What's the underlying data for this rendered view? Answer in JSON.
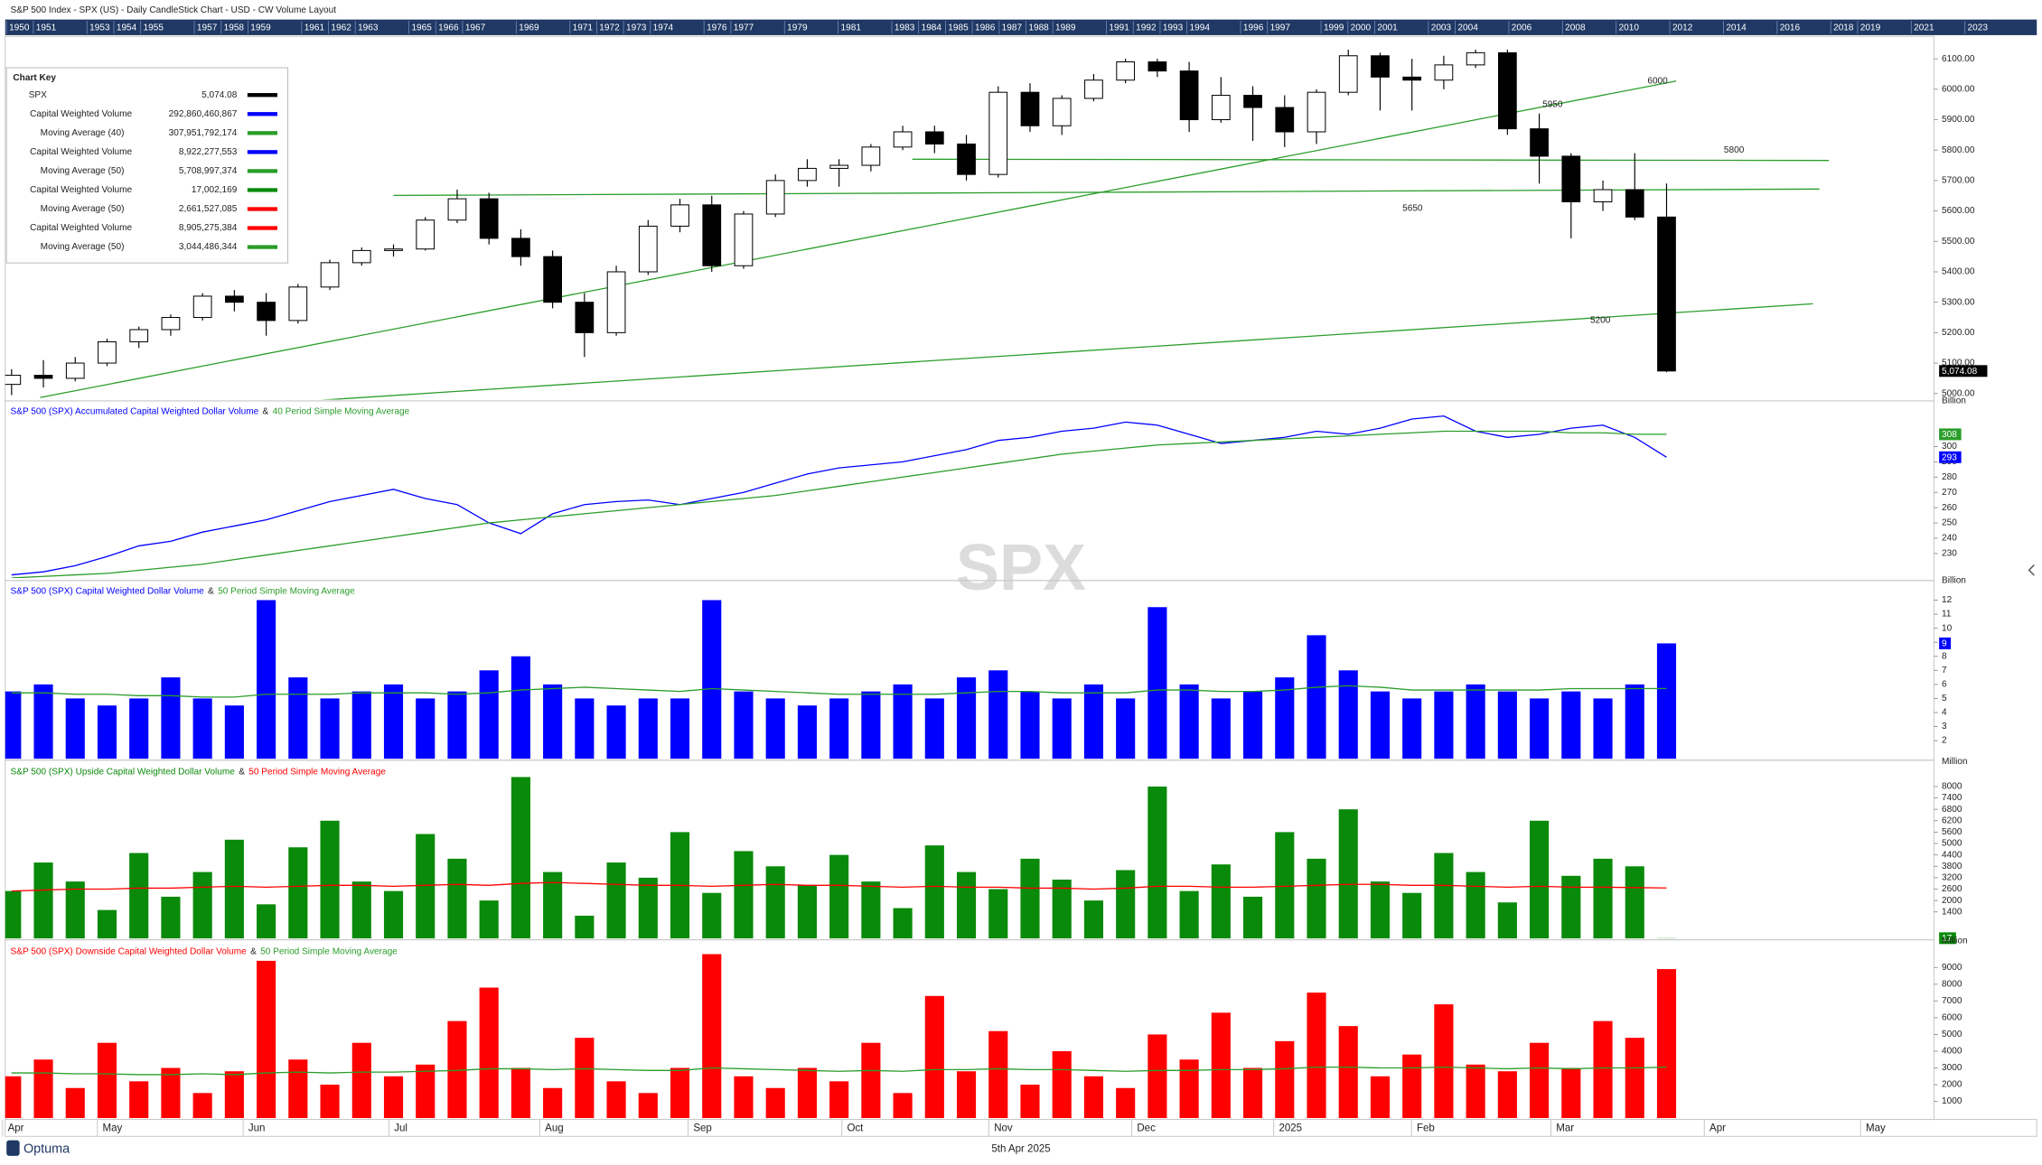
{
  "header": {
    "title": "S&P 500 Index - SPX (US) - Daily CandleStick Chart - USD - CW Volume Layout",
    "years": [
      1950,
      1951,
      1953,
      1954,
      1955,
      1957,
      1958,
      1959,
      1961,
      1962,
      1963,
      1965,
      1966,
      1967,
      1969,
      1971,
      1972,
      1973,
      1974,
      1976,
      1977,
      1979,
      1981,
      1983,
      1984,
      1985,
      1986,
      1987,
      1988,
      1989,
      1991,
      1992,
      1993,
      1994,
      1996,
      1997,
      1999,
      2000,
      2001,
      2003,
      2004,
      2006,
      2008,
      2010,
      2012,
      2014,
      2016,
      2018,
      2019,
      2021,
      2023
    ]
  },
  "watermark": "SPX",
  "chart_key": {
    "title": "Chart Key",
    "rows": [
      {
        "name": "SPX",
        "value": "5,074.08",
        "color": "#000000"
      },
      {
        "name": "Capital Weighted Volume",
        "value": "292,860,460,867",
        "color": "#0000ff"
      },
      {
        "name": "Moving Average (40)",
        "value": "307,951,792,174",
        "color": "#2a9d2a"
      },
      {
        "name": "Capital Weighted Volume",
        "value": "8,922,277,553",
        "color": "#0000ff"
      },
      {
        "name": "Moving Average (50)",
        "value": "5,708,997,374",
        "color": "#2a9d2a"
      },
      {
        "name": "Capital Weighted Volume",
        "value": "17,002,169",
        "color": "#0a8a0a"
      },
      {
        "name": "Moving Average (50)",
        "value": "2,661,527,085",
        "color": "#ff0000"
      },
      {
        "name": "Capital Weighted Volume",
        "value": "8,905,275,384",
        "color": "#ff0000"
      },
      {
        "name": "Moving Average (50)",
        "value": "3,044,486,344",
        "color": "#2a9d2a"
      }
    ]
  },
  "x_axis": {
    "xlim": [
      -0.2,
      60.4
    ],
    "xticks": [
      {
        "value": -0.12,
        "label": "Apr"
      },
      {
        "value": 2.86,
        "label": "May"
      },
      {
        "value": 7.44,
        "label": "Jun"
      },
      {
        "value": 12.02,
        "label": "Jul"
      },
      {
        "value": 16.76,
        "label": "Aug"
      },
      {
        "value": 21.42,
        "label": "Sep"
      },
      {
        "value": 26.25,
        "label": "Oct"
      },
      {
        "value": 30.87,
        "label": "Nov"
      },
      {
        "value": 35.36,
        "label": "Dec"
      },
      {
        "value": 39.82,
        "label": "2025"
      },
      {
        "value": 44.15,
        "label": "Feb"
      },
      {
        "value": 48.53,
        "label": "Mar"
      },
      {
        "value": 53.35,
        "label": "Apr"
      },
      {
        "value": 58.26,
        "label": "May"
      }
    ]
  },
  "footer": {
    "brand": "Optuma",
    "date": "5th Apr 2025"
  },
  "chart_data": [
    {
      "type": "candlestick",
      "ylim": [
        4980,
        6135
      ],
      "yticks": [
        {
          "value": 5000,
          "label": "5000.00"
        },
        {
          "value": 5100,
          "label": "5100.00"
        },
        {
          "value": 5200,
          "label": "5200.00"
        },
        {
          "value": 5300,
          "label": "5300.00"
        },
        {
          "value": 5400,
          "label": "5400.00"
        },
        {
          "value": 5500,
          "label": "5500.00"
        },
        {
          "value": 5600,
          "label": "5600.00"
        },
        {
          "value": 5700,
          "label": "5700.00"
        },
        {
          "value": 5800,
          "label": "5800.00"
        },
        {
          "value": 5900,
          "label": "5900.00"
        },
        {
          "value": 6000,
          "label": "6000.00"
        },
        {
          "value": 6100,
          "label": "6100.00"
        }
      ],
      "up_color": "#ffffff",
      "down_color": "#000000",
      "last_label": "5,074.08",
      "open": [
        5030,
        5060,
        5050,
        5100,
        5170,
        5210,
        5250,
        5320,
        5300,
        5240,
        5350,
        5430,
        5470,
        5475,
        5570,
        5640,
        5510,
        5450,
        5300,
        5200,
        5400,
        5550,
        5620,
        5420,
        5590,
        5700,
        5740,
        5750,
        5810,
        5860,
        5820,
        5720,
        5990,
        5880,
        5970,
        6030,
        6090,
        6060,
        5900,
        5980,
        5940,
        5860,
        5990,
        6110,
        6040,
        6030,
        6080,
        6120,
        5870,
        5780,
        5630,
        5670,
        5580
      ],
      "high": [
        5080,
        5110,
        5120,
        5180,
        5220,
        5260,
        5330,
        5340,
        5330,
        5360,
        5440,
        5480,
        5490,
        5580,
        5670,
        5660,
        5540,
        5470,
        5330,
        5420,
        5570,
        5640,
        5650,
        5600,
        5720,
        5770,
        5770,
        5820,
        5880,
        5880,
        5850,
        6010,
        6020,
        5980,
        6050,
        6100,
        6100,
        6090,
        6040,
        6010,
        5980,
        6000,
        6130,
        6120,
        6100,
        6110,
        6130,
        6130,
        5920,
        5790,
        5700,
        5790,
        5690
      ],
      "low": [
        4995,
        5020,
        5040,
        5090,
        5150,
        5190,
        5240,
        5270,
        5190,
        5230,
        5340,
        5420,
        5450,
        5470,
        5560,
        5490,
        5420,
        5280,
        5120,
        5190,
        5390,
        5530,
        5400,
        5410,
        5580,
        5680,
        5680,
        5730,
        5800,
        5790,
        5700,
        5710,
        5860,
        5850,
        5960,
        6020,
        6040,
        5860,
        5890,
        5830,
        5810,
        5820,
        5980,
        5930,
        5930,
        6000,
        6070,
        5850,
        5690,
        5510,
        5600,
        5570,
        5070
      ],
      "close": [
        5060,
        5050,
        5100,
        5170,
        5210,
        5250,
        5320,
        5300,
        5240,
        5350,
        5430,
        5470,
        5475,
        5570,
        5640,
        5510,
        5450,
        5300,
        5200,
        5400,
        5550,
        5620,
        5420,
        5590,
        5700,
        5740,
        5750,
        5810,
        5860,
        5820,
        5720,
        5990,
        5880,
        5970,
        6030,
        6090,
        6060,
        5900,
        5980,
        5940,
        5860,
        5990,
        6110,
        6040,
        6030,
        6080,
        6120,
        5870,
        5780,
        5630,
        5670,
        5580,
        5074.08
      ],
      "trendlines": [
        {
          "x": [
            0.9,
            52.3
          ],
          "y": [
            4987,
            6027
          ],
          "color": "#2a9d2a"
        },
        {
          "x": [
            28.3,
            57.1
          ],
          "y": [
            5770,
            5766
          ],
          "color": "#2a9d2a"
        },
        {
          "x": [
            12,
            56.8
          ],
          "y": [
            5651,
            5672
          ],
          "color": "#2a9d2a"
        },
        {
          "x": [
            9.1,
            56.6
          ],
          "y": [
            4974,
            5295
          ],
          "color": "#2a9d2a"
        }
      ],
      "annotations": [
        {
          "text": "6000",
          "x": 51.4,
          "y": 6027
        },
        {
          "text": "5950",
          "x": 48.1,
          "y": 5950
        },
        {
          "text": "5800",
          "x": 53.8,
          "y": 5800
        },
        {
          "text": "5650",
          "x": 43.7,
          "y": 5608
        },
        {
          "text": "5200",
          "x": 49.6,
          "y": 5240
        }
      ]
    },
    {
      "type": "line",
      "unit": "Billion",
      "ylim": [
        214,
        329
      ],
      "yticks": [
        230,
        240,
        250,
        260,
        270,
        280,
        290,
        300
      ],
      "title_parts": [
        {
          "text": "S&P 500 (SPX)  Accumulated Capital Weighted Dollar Volume",
          "color": "#0000ff"
        },
        {
          "text": "&",
          "color": "#222222"
        },
        {
          "text": "40 Period Simple Moving Average",
          "color": "#2a9d2a"
        }
      ],
      "series": [
        {
          "type": "line",
          "color": "#0000ff",
          "last_label": "293",
          "values": [
            216,
            218,
            222,
            228,
            235,
            238,
            244,
            248,
            252,
            258,
            264,
            268,
            272,
            266,
            262,
            250,
            243,
            256,
            262,
            264,
            265,
            262,
            266,
            270,
            276,
            282,
            286,
            288,
            290,
            294,
            298,
            304,
            306,
            310,
            312,
            316,
            314,
            308,
            302,
            304,
            306,
            310,
            308,
            312,
            318,
            320,
            310,
            306,
            308,
            312,
            314,
            306,
            293
          ]
        },
        {
          "type": "line",
          "color": "#2a9d2a",
          "last_label": "308",
          "values": [
            214,
            215,
            216,
            217,
            219,
            221,
            223,
            226,
            229,
            232,
            235,
            238,
            241,
            244,
            247,
            250,
            252,
            254,
            256,
            258,
            260,
            262,
            264,
            266,
            268,
            271,
            274,
            277,
            280,
            283,
            286,
            289,
            292,
            295,
            297,
            299,
            301,
            302,
            303,
            304,
            305,
            306,
            307,
            308,
            309,
            310,
            310,
            310,
            310,
            309,
            309,
            308,
            308
          ]
        }
      ]
    },
    {
      "type": "bar",
      "unit": "Billion",
      "ylim": [
        0.7,
        13.3
      ],
      "yticks": [
        2,
        3,
        4,
        5,
        6,
        7,
        8,
        9,
        10,
        11,
        12
      ],
      "title_parts": [
        {
          "text": "S&P 500 (SPX)  Capital Weighted Dollar Volume",
          "color": "#0000ff"
        },
        {
          "text": "&",
          "color": "#222222"
        },
        {
          "text": "50 Period Simple Moving Average",
          "color": "#2a9d2a"
        }
      ],
      "series": [
        {
          "type": "bar",
          "color": "#0000ff",
          "last_label": "9",
          "values": [
            5.5,
            6,
            5,
            4.5,
            5,
            6.5,
            5,
            4.5,
            12,
            6.5,
            5,
            5.5,
            6,
            5,
            5.5,
            7,
            8,
            6,
            5,
            4.5,
            5,
            5,
            12,
            5.5,
            5,
            4.5,
            5,
            5.5,
            6,
            5,
            6.5,
            7,
            5.5,
            5,
            6,
            5,
            11.5,
            6,
            5,
            5.5,
            6.5,
            9.5,
            7,
            5.5,
            5,
            5.5,
            6,
            5.5,
            5,
            5.5,
            5,
            6,
            8.92
          ]
        },
        {
          "type": "line",
          "color": "#2a9d2a",
          "values": [
            5.4,
            5.4,
            5.3,
            5.3,
            5.2,
            5.2,
            5.1,
            5.1,
            5.3,
            5.3,
            5.3,
            5.4,
            5.4,
            5.4,
            5.3,
            5.4,
            5.6,
            5.7,
            5.8,
            5.7,
            5.6,
            5.5,
            5.7,
            5.6,
            5.5,
            5.4,
            5.3,
            5.3,
            5.3,
            5.3,
            5.4,
            5.5,
            5.5,
            5.4,
            5.4,
            5.4,
            5.6,
            5.6,
            5.5,
            5.5,
            5.6,
            5.8,
            5.9,
            5.8,
            5.6,
            5.6,
            5.6,
            5.6,
            5.6,
            5.7,
            5.7,
            5.7,
            5.71
          ]
        }
      ]
    },
    {
      "type": "bar",
      "unit": "Million",
      "ylim": [
        0,
        9250
      ],
      "yticks": [
        1400,
        2000,
        2600,
        3200,
        3800,
        4400,
        5000,
        5600,
        6200,
        6800,
        7400,
        8000
      ],
      "title_parts": [
        {
          "text": "S&P 500 (SPX)  Upside Capital Weighted Dollar Volume",
          "color": "#0a8a0a"
        },
        {
          "text": "&",
          "color": "#222222"
        },
        {
          "text": "50 Period Simple Moving Average",
          "color": "#ff0000"
        }
      ],
      "series": [
        {
          "type": "bar",
          "color": "#0a8a0a",
          "last_label": "17",
          "values": [
            2500,
            4000,
            3000,
            1500,
            4500,
            2200,
            3500,
            5200,
            1800,
            4800,
            6200,
            3000,
            2500,
            5500,
            4200,
            2000,
            8500,
            3500,
            1200,
            4000,
            3200,
            5600,
            2400,
            4600,
            3800,
            2800,
            4400,
            3000,
            1600,
            4900,
            3500,
            2600,
            4200,
            3100,
            2000,
            3600,
            8000,
            2500,
            3900,
            2200,
            5600,
            4200,
            6800,
            3000,
            2400,
            4500,
            3500,
            1900,
            6200,
            3300,
            4200,
            3800,
            17
          ]
        },
        {
          "type": "line",
          "color": "#ff0000",
          "values": [
            2500,
            2550,
            2600,
            2600,
            2650,
            2650,
            2700,
            2750,
            2700,
            2750,
            2800,
            2800,
            2750,
            2800,
            2850,
            2800,
            2900,
            2950,
            2900,
            2850,
            2800,
            2800,
            2750,
            2800,
            2850,
            2800,
            2800,
            2750,
            2700,
            2750,
            2700,
            2700,
            2650,
            2650,
            2600,
            2650,
            2750,
            2750,
            2700,
            2700,
            2750,
            2800,
            2850,
            2850,
            2800,
            2800,
            2750,
            2700,
            2750,
            2700,
            2700,
            2680,
            2661.5
          ]
        }
      ]
    },
    {
      "type": "bar",
      "unit": "Million",
      "ylim": [
        0,
        10500
      ],
      "yticks": [
        1000,
        2000,
        3000,
        4000,
        5000,
        6000,
        7000,
        8000,
        9000
      ],
      "title_parts": [
        {
          "text": "S&P 500 (SPX)  Downside Capital Weighted Dollar Volume",
          "color": "#ff0000"
        },
        {
          "text": "&",
          "color": "#222222"
        },
        {
          "text": "50 Period Simple Moving Average",
          "color": "#2a9d2a"
        }
      ],
      "series": [
        {
          "type": "bar",
          "color": "#ff0000",
          "values": [
            2500,
            3500,
            1800,
            4500,
            2200,
            3000,
            1500,
            2800,
            9400,
            3500,
            2000,
            4500,
            2500,
            3200,
            5800,
            7800,
            3000,
            1800,
            4800,
            2200,
            1500,
            3000,
            9800,
            2500,
            1800,
            3000,
            2200,
            4500,
            1500,
            7300,
            2800,
            5200,
            2000,
            4000,
            2500,
            1800,
            5000,
            3500,
            6300,
            3000,
            4600,
            7500,
            5500,
            2500,
            3800,
            6800,
            3200,
            2800,
            4500,
            3000,
            5800,
            4800,
            8905
          ]
        },
        {
          "type": "line",
          "color": "#2a9d2a",
          "values": [
            2700,
            2700,
            2650,
            2650,
            2600,
            2600,
            2650,
            2600,
            2700,
            2750,
            2700,
            2750,
            2750,
            2800,
            2850,
            2950,
            2950,
            2900,
            2950,
            2900,
            2850,
            2850,
            3000,
            2950,
            2900,
            2850,
            2800,
            2850,
            2800,
            2900,
            2900,
            2950,
            2900,
            2900,
            2850,
            2800,
            2850,
            2850,
            2900,
            2900,
            2950,
            3050,
            3050,
            3000,
            3000,
            3050,
            3000,
            2950,
            3000,
            2950,
            3000,
            3000,
            3044.5
          ]
        }
      ]
    }
  ]
}
